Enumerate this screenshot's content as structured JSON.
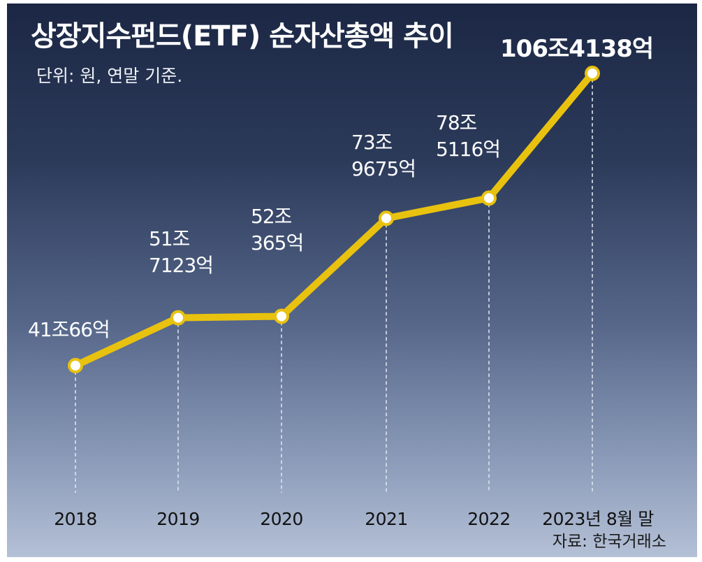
{
  "chart_data": {
    "type": "line",
    "title": "상장지수펀드(ETF) 순자산총액 추이",
    "subtitle": "단위: 원, 연말 기준.",
    "source": "자료: 한국거래소",
    "categories": [
      "2018",
      "2019",
      "2020",
      "2021",
      "2022",
      "2023년 8월 말"
    ],
    "values": [
      41.0066,
      51.7123,
      52.0365,
      73.9675,
      78.5116,
      106.4138
    ],
    "value_unit": "조 원",
    "labels": [
      [
        "41조66억"
      ],
      [
        "51조",
        "7123억"
      ],
      [
        "52조",
        "365억"
      ],
      [
        "73조",
        "9675억"
      ],
      [
        "78조",
        "5116억"
      ],
      [
        "106조4138억"
      ]
    ],
    "ylim": [
      20,
      110
    ],
    "grid": false,
    "colors": {
      "line": "#e8c20f",
      "marker_fill": "#ffffff",
      "guide": "#dde3ee"
    }
  }
}
